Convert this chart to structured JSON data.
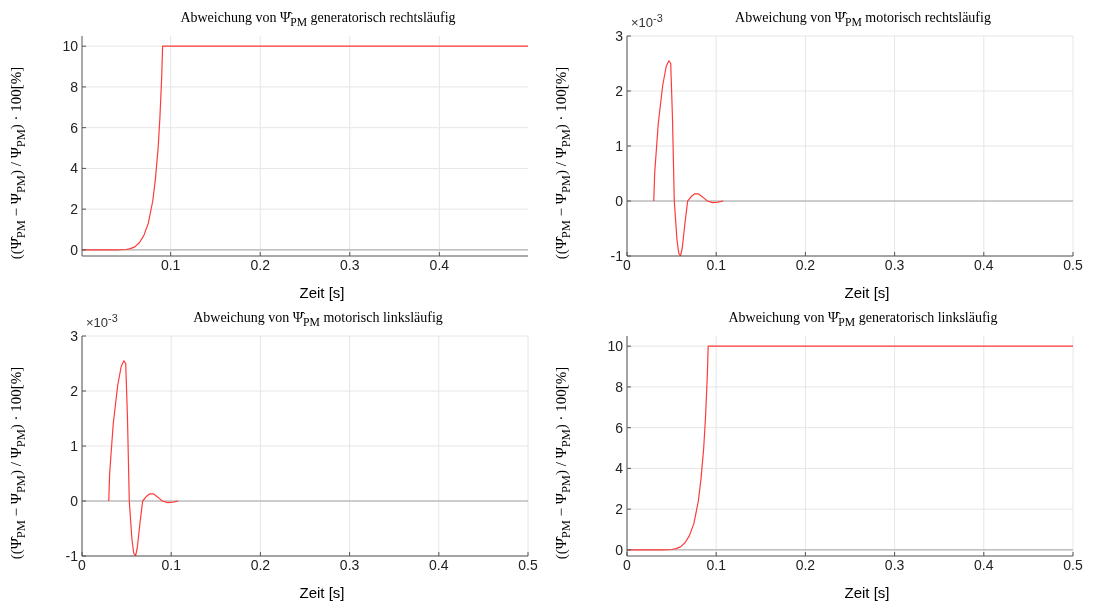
{
  "chart_data": [
    {
      "type": "line",
      "title": "Abweichung von Ψ̂$_{PM}$ generatorisch rechtsläufig",
      "xlabel": "Zeit [s]",
      "ylabel": "((Ψ̂$_{PM}$ − Ψ$_{PM}$) / Ψ$_{PM}$) · 100[%]",
      "xlim": [
        0.001,
        0.499
      ],
      "xticks": [
        0.1,
        0.2,
        0.3,
        0.4
      ],
      "ylim": [
        -0.3,
        10.5
      ],
      "yticks": [
        0,
        2,
        4,
        6,
        8,
        10
      ],
      "grid": true,
      "ref_lines": [
        {
          "axis": "y",
          "value": 0,
          "color": "#a6a6a6"
        }
      ],
      "series": [
        {
          "color": "#ff3b3b",
          "x": [
            0.001,
            0.04,
            0.05,
            0.055,
            0.06,
            0.065,
            0.07,
            0.075,
            0.08,
            0.083,
            0.086,
            0.088,
            0.09,
            0.091,
            0.499
          ],
          "values": [
            0,
            0,
            0.02,
            0.06,
            0.15,
            0.35,
            0.7,
            1.3,
            2.4,
            3.5,
            5,
            6.5,
            8.5,
            10,
            10
          ]
        }
      ]
    },
    {
      "type": "line",
      "title": "Abweichung von Ψ̂$_{PM}$ motorisch rechtsläufig",
      "xlabel": "Zeit [s]",
      "ylabel": "((Ψ̂$_{PM}$ − Ψ$_{PM}$) / Ψ$_{PM}$) · 100[%]",
      "annotations": [
        "×10$^{-3}$"
      ],
      "xlim": [
        0,
        0.5
      ],
      "xticks": [
        0,
        0.1,
        0.2,
        0.3,
        0.4,
        0.5
      ],
      "ylim": [
        -1,
        3
      ],
      "yticks": [
        -1,
        0,
        1,
        2,
        3
      ],
      "grid": true,
      "ref_lines": [
        {
          "axis": "y",
          "value": 0,
          "color": "#a6a6a6"
        }
      ],
      "series": [
        {
          "color": "#ff3b3b",
          "x": [
            0.03,
            0.031,
            0.035,
            0.04,
            0.044,
            0.047,
            0.049,
            0.051,
            0.053,
            0.056,
            0.058,
            0.06,
            0.062,
            0.065,
            0.068,
            0.072,
            0.076,
            0.08,
            0.085,
            0.09,
            0.096,
            0.102,
            0.108
          ],
          "values": [
            0,
            0.5,
            1.4,
            2.1,
            2.45,
            2.55,
            2.5,
            1.5,
            0,
            -0.7,
            -0.95,
            -1,
            -0.85,
            -0.4,
            0,
            0.08,
            0.13,
            0.13,
            0.07,
            0,
            -0.03,
            -0.02,
            0
          ]
        }
      ]
    },
    {
      "type": "line",
      "title": "Abweichung von Ψ̂$_{PM}$ motorisch linksläufig",
      "xlabel": "Zeit [s]",
      "ylabel": "((Ψ̂$_{PM}$ − Ψ$_{PM}$) / Ψ$_{PM}$) · 100[%]",
      "annotations": [
        "×10$^{-3}$"
      ],
      "xlim": [
        0,
        0.5
      ],
      "xticks": [
        0,
        0.1,
        0.2,
        0.3,
        0.4,
        0.5
      ],
      "ylim": [
        -1,
        3
      ],
      "yticks": [
        -1,
        0,
        1,
        2,
        3
      ],
      "grid": true,
      "ref_lines": [
        {
          "axis": "y",
          "value": 0,
          "color": "#a6a6a6"
        }
      ],
      "series": [
        {
          "color": "#ff3b3b",
          "x": [
            0.03,
            0.031,
            0.035,
            0.04,
            0.044,
            0.047,
            0.049,
            0.051,
            0.053,
            0.056,
            0.058,
            0.06,
            0.062,
            0.065,
            0.068,
            0.072,
            0.076,
            0.08,
            0.085,
            0.09,
            0.096,
            0.102,
            0.108
          ],
          "values": [
            0,
            0.5,
            1.4,
            2.1,
            2.45,
            2.55,
            2.5,
            1.5,
            0,
            -0.7,
            -0.95,
            -1,
            -0.85,
            -0.4,
            0,
            0.08,
            0.13,
            0.13,
            0.07,
            0,
            -0.03,
            -0.02,
            0
          ]
        }
      ]
    },
    {
      "type": "line",
      "title": "Abweichung von Ψ̂$_{PM}$ generatorisch linksläufig",
      "xlabel": "Zeit [s]",
      "ylabel": "((Ψ̂$_{PM}$ − Ψ$_{PM}$) / Ψ$_{PM}$) · 100[%]",
      "xlim": [
        0,
        0.5
      ],
      "xticks": [
        0,
        0.1,
        0.2,
        0.3,
        0.4,
        0.5
      ],
      "ylim": [
        -0.3,
        10.5
      ],
      "yticks": [
        0,
        2,
        4,
        6,
        8,
        10
      ],
      "grid": true,
      "ref_lines": [
        {
          "axis": "y",
          "value": 0,
          "color": "#a6a6a6"
        }
      ],
      "series": [
        {
          "color": "#ff3b3b",
          "x": [
            0,
            0.04,
            0.05,
            0.055,
            0.06,
            0.065,
            0.07,
            0.075,
            0.08,
            0.083,
            0.086,
            0.088,
            0.09,
            0.091,
            0.5
          ],
          "values": [
            0,
            0,
            0.02,
            0.06,
            0.15,
            0.35,
            0.7,
            1.3,
            2.4,
            3.5,
            5,
            6.5,
            8.5,
            10,
            10
          ]
        }
      ]
    }
  ]
}
